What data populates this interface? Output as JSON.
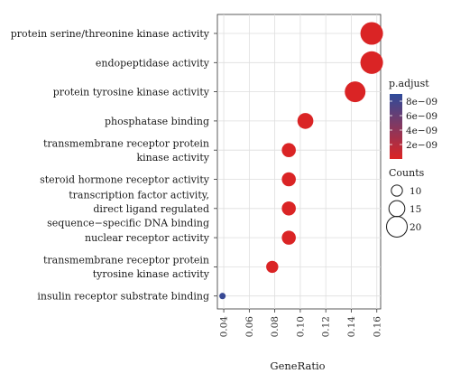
{
  "chart_data": {
    "type": "scatter",
    "xlabel": "GeneRatio",
    "xlim": [
      0.035,
      0.163
    ],
    "x_ticks": [
      "0.04",
      "0.06",
      "0.08",
      "0.10",
      "0.12",
      "0.14",
      "0.16"
    ],
    "x_tick_values": [
      0.04,
      0.06,
      0.08,
      0.1,
      0.12,
      0.14,
      0.16
    ],
    "grid": true,
    "points": [
      {
        "term": "protein serine/threonine kinase activity",
        "gene_ratio": 0.156,
        "count": 22,
        "p_adjust": 1e-10
      },
      {
        "term": "endopeptidase activity",
        "gene_ratio": 0.156,
        "count": 22,
        "p_adjust": 1e-10
      },
      {
        "term": "protein tyrosine kinase activity",
        "gene_ratio": 0.143,
        "count": 20,
        "p_adjust": 1e-10
      },
      {
        "term": "phosphatase binding",
        "gene_ratio": 0.104,
        "count": 15,
        "p_adjust": 1e-10
      },
      {
        "term": "transmembrane receptor protein\nkinase activity",
        "gene_ratio": 0.091,
        "count": 13,
        "p_adjust": 1e-10
      },
      {
        "term": "steroid hormone receptor activity",
        "gene_ratio": 0.091,
        "count": 13,
        "p_adjust": 1e-10
      },
      {
        "term": "transcription factor activity,\ndirect ligand regulated\nsequence−specific DNA binding",
        "gene_ratio": 0.091,
        "count": 13,
        "p_adjust": 1e-10
      },
      {
        "term": "nuclear receptor activity",
        "gene_ratio": 0.091,
        "count": 13,
        "p_adjust": 1e-10
      },
      {
        "term": "transmembrane receptor protein\ntyrosine kinase activity",
        "gene_ratio": 0.078,
        "count": 11,
        "p_adjust": 1e-10
      },
      {
        "term": "insulin receptor substrate binding",
        "gene_ratio": 0.039,
        "count": 5,
        "p_adjust": 8.5e-09
      }
    ],
    "color_legend": {
      "title": "p.adjust",
      "labels": [
        "8e−09",
        "6e−09",
        "4e−09",
        "2e−09"
      ],
      "values": [
        8e-09,
        6e-09,
        4e-09,
        2e-09
      ],
      "range": [
        0,
        9e-09
      ],
      "low_color": "#dc2424",
      "high_color": "#2e4b9b"
    },
    "size_legend": {
      "title": "Counts",
      "labels": [
        "10",
        "15",
        "20"
      ],
      "values": [
        10,
        15,
        20
      ]
    },
    "panel_background": "#ffffff",
    "grid_color": "#dedede"
  }
}
